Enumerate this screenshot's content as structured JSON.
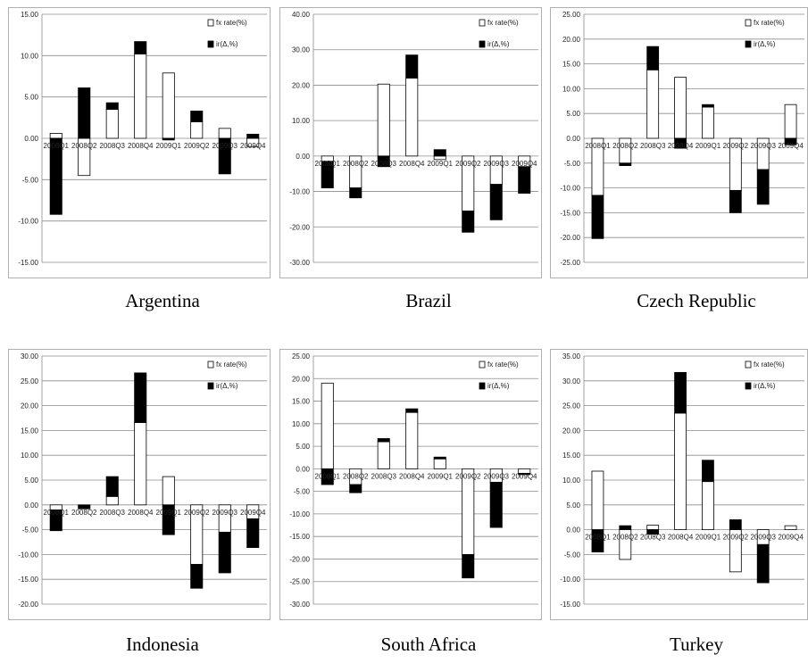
{
  "categories": [
    "2008Q1",
    "2008Q2",
    "2008Q3",
    "2008Q4",
    "2009Q1",
    "2009Q2",
    "2009Q3",
    "2009Q4"
  ],
  "legend": {
    "fx": "fx rate(%)",
    "ir": "ir(Δ,%)"
  },
  "colors": {
    "fx_fill": "#ffffff",
    "ir_fill": "#000000",
    "frame": "#b0b0b0",
    "grid": "#8c8c8c"
  },
  "chart_data": [
    {
      "type": "bar",
      "stacked": true,
      "title": "Argentina",
      "ylim": [
        -15,
        15
      ],
      "yticks": [
        -15,
        -10,
        -5,
        0,
        5,
        10,
        15
      ],
      "tick_labels": [
        "-15.00",
        "-10.00",
        "-5.00",
        "0.00",
        "5.00",
        "10.00",
        "15.00"
      ],
      "series": [
        {
          "name": "fx rate(%)",
          "values": [
            0.6,
            -4.5,
            3.5,
            10.2,
            7.9,
            2.0,
            1.2,
            -1.0
          ]
        },
        {
          "name": "ir(Δ,%)",
          "values": [
            -9.2,
            6.1,
            0.8,
            1.5,
            -0.2,
            1.3,
            -4.3,
            0.5
          ]
        }
      ]
    },
    {
      "type": "bar",
      "stacked": true,
      "title": "Brazil",
      "ylim": [
        -30,
        40
      ],
      "yticks": [
        -30,
        -20,
        -10,
        0,
        10,
        20,
        30,
        40
      ],
      "tick_labels": [
        "-30.00",
        "-20.00",
        "-10.00",
        "0.00",
        "10.00",
        "20.00",
        "30.00",
        "40.00"
      ],
      "series": [
        {
          "name": "fx rate(%)",
          "values": [
            -1.5,
            -9.0,
            20.3,
            22.0,
            -1.0,
            -15.5,
            -8.0,
            -3.0
          ]
        },
        {
          "name": "ir(Δ,%)",
          "values": [
            -7.5,
            -2.8,
            -3.0,
            6.5,
            1.8,
            -6.0,
            -10.0,
            -7.5
          ]
        }
      ]
    },
    {
      "type": "bar",
      "stacked": true,
      "title": "Czech Republic",
      "ylim": [
        -25,
        25
      ],
      "yticks": [
        -25,
        -20,
        -15,
        -10,
        -5,
        0,
        5,
        10,
        15,
        20,
        25
      ],
      "tick_labels": [
        "-25.00",
        "-20.00",
        "-15.00",
        "-10.00",
        "-5.00",
        "0.00",
        "5.00",
        "10.00",
        "15.00",
        "20.00",
        "25.00"
      ],
      "series": [
        {
          "name": "fx rate(%)",
          "values": [
            -11.5,
            -5.0,
            13.8,
            12.3,
            6.3,
            -10.5,
            -6.3,
            6.8
          ]
        },
        {
          "name": "ir(Δ,%)",
          "values": [
            -8.7,
            -0.5,
            4.7,
            -2.0,
            0.5,
            -4.5,
            -7.0,
            -1.3
          ]
        }
      ]
    },
    {
      "type": "bar",
      "stacked": true,
      "title": "Indonesia",
      "ylim": [
        -20,
        30
      ],
      "yticks": [
        -20,
        -15,
        -10,
        -5,
        0,
        5,
        10,
        15,
        20,
        25,
        30
      ],
      "tick_labels": [
        "-20.00",
        "-15.00",
        "-10.00",
        "-5.00",
        "0.00",
        "5.00",
        "10.00",
        "15.00",
        "20.00",
        "25.00",
        "30.00"
      ],
      "series": [
        {
          "name": "fx rate(%)",
          "values": [
            -1.0,
            0.0,
            1.7,
            16.6,
            5.7,
            -12.0,
            -5.5,
            -2.8
          ]
        },
        {
          "name": "ir(Δ,%)",
          "values": [
            -4.2,
            -0.8,
            4.0,
            10.0,
            -6.0,
            -4.8,
            -8.2,
            -5.8
          ]
        }
      ]
    },
    {
      "type": "bar",
      "stacked": true,
      "title": "South Africa",
      "ylim": [
        -30,
        25
      ],
      "yticks": [
        -30,
        -25,
        -20,
        -15,
        -10,
        -5,
        0,
        5,
        10,
        15,
        20,
        25
      ],
      "tick_labels": [
        "-30.00",
        "-25.00",
        "-20.00",
        "-15.00",
        "-10.00",
        "-5.00",
        "0.00",
        "5.00",
        "10.00",
        "15.00",
        "20.00",
        "25.00"
      ],
      "series": [
        {
          "name": "fx rate(%)",
          "values": [
            19.0,
            -3.5,
            6.0,
            12.5,
            2.2,
            -19.0,
            -3.0,
            -1.0
          ]
        },
        {
          "name": "ir(Δ,%)",
          "values": [
            -3.5,
            -1.8,
            0.7,
            0.8,
            0.4,
            -5.2,
            -10.0,
            -0.3
          ]
        }
      ]
    },
    {
      "type": "bar",
      "stacked": true,
      "title": "Turkey",
      "ylim": [
        -15,
        35
      ],
      "yticks": [
        -15,
        -10,
        -5,
        0,
        5,
        10,
        15,
        20,
        25,
        30,
        35
      ],
      "tick_labels": [
        "-15.00",
        "-10.00",
        "-5.00",
        "0.00",
        "5.00",
        "10.00",
        "15.00",
        "20.00",
        "25.00",
        "30.00",
        "35.00"
      ],
      "series": [
        {
          "name": "fx rate(%)",
          "values": [
            11.8,
            -6.0,
            0.9,
            23.5,
            9.7,
            -8.5,
            -3.0,
            0.8
          ]
        },
        {
          "name": "ir(Δ,%)",
          "values": [
            -4.5,
            0.8,
            -0.9,
            8.2,
            4.3,
            2.0,
            -7.7,
            0.0
          ]
        }
      ]
    }
  ]
}
